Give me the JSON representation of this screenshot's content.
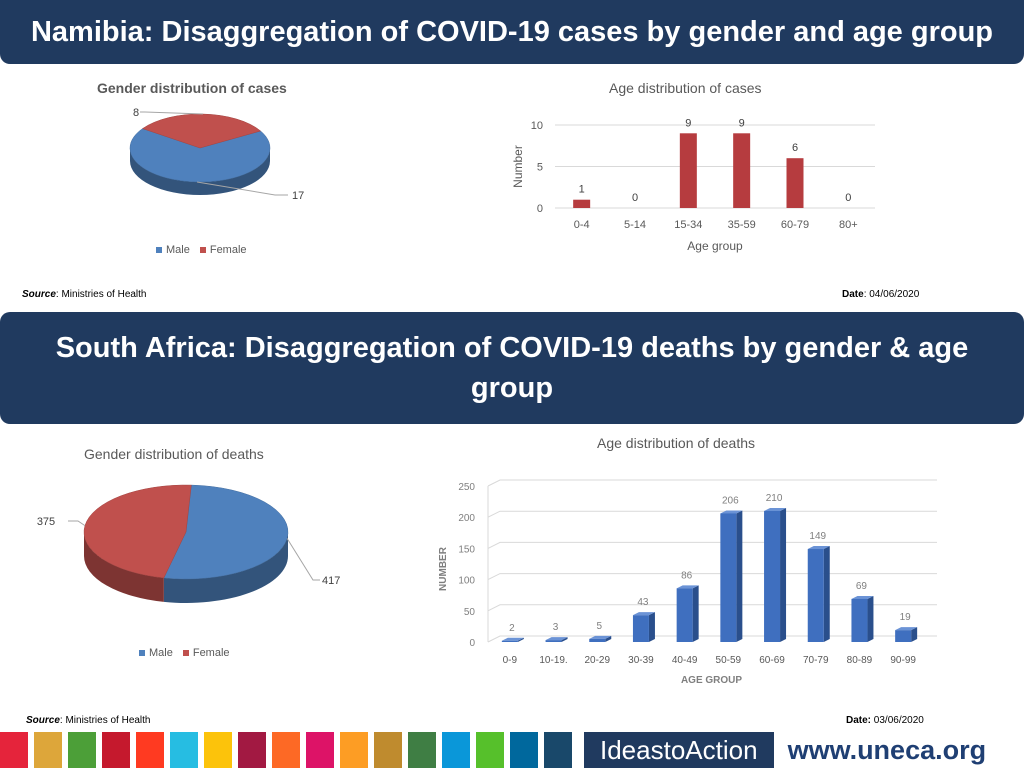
{
  "section1": {
    "title": "Namibia: Disaggregation of COVID-19 cases by gender and age group",
    "source_label": "Source",
    "source_text": "Ministries of Health",
    "date_label": "Date",
    "date_text": "04/06/2020"
  },
  "section2": {
    "title": "South Africa: Disaggregation of COVID-19 deaths by gender & age group",
    "source_label": "Source",
    "source_text": "Ministries of Health",
    "date_label": "Date:",
    "date_text": "03/06/2020"
  },
  "colors": {
    "male": "#4f81bd",
    "female": "#c0504d",
    "bar_blue": "#3f6fbf",
    "bar_red": "#b63c3f",
    "banner": "#203a5f"
  },
  "chart_data": [
    {
      "id": "namibia-gender",
      "type": "pie",
      "title": "Gender distribution of cases",
      "labels": [
        "Male",
        "Female"
      ],
      "values": [
        17,
        8
      ],
      "legend": "bottom"
    },
    {
      "id": "namibia-age",
      "type": "bar",
      "title": "Age distribution of cases",
      "categories": [
        "0-4",
        "5-14",
        "15-34",
        "35-59",
        "60-79",
        "80+"
      ],
      "values": [
        1,
        0,
        9,
        9,
        6,
        0
      ],
      "xlabel": "Age group",
      "ylabel": "Number",
      "ylim": [
        0,
        10
      ],
      "yticks": [
        0,
        5,
        10
      ]
    },
    {
      "id": "sa-gender",
      "type": "pie",
      "title": "Gender distribution of deaths",
      "labels": [
        "Male",
        "Female"
      ],
      "values": [
        417,
        375
      ],
      "legend": "bottom"
    },
    {
      "id": "sa-age",
      "type": "bar",
      "title": "Age distribution of deaths",
      "categories": [
        "0-9",
        "10-19.",
        "20-29",
        "30-39",
        "40-49",
        "50-59",
        "60-69",
        "70-79",
        "80-89",
        "90-99"
      ],
      "values": [
        2,
        3,
        5,
        43,
        86,
        206,
        210,
        149,
        69,
        19
      ],
      "xlabel": "AGE GROUP",
      "ylabel": "NUMBER",
      "ylim": [
        0,
        250
      ],
      "yticks": [
        0,
        50,
        100,
        150,
        200,
        250
      ]
    }
  ],
  "footer": {
    "brand": "IdeastoAction",
    "url": "www.uneca.org",
    "sdg_colors": [
      "#e5243b",
      "#dda63a",
      "#4c9f38",
      "#c5192d",
      "#ff3a21",
      "#26bde2",
      "#fcc30b",
      "#a21942",
      "#fd6925",
      "#dd1367",
      "#fd9d24",
      "#bf8b2e",
      "#3f7e44",
      "#0a97d9",
      "#56c02b",
      "#00689d",
      "#19486a"
    ]
  }
}
